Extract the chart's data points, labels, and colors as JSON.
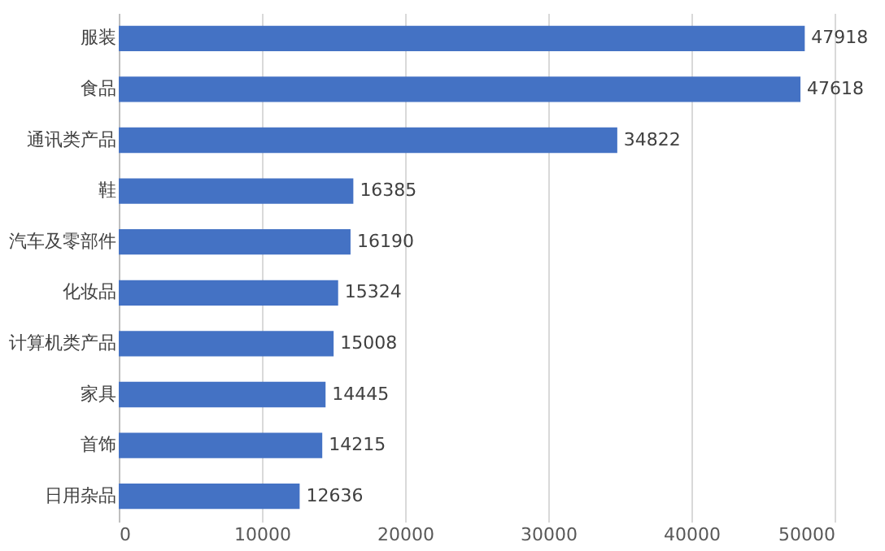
{
  "chart_data": {
    "type": "bar",
    "orientation": "horizontal",
    "categories": [
      "服装",
      "食品",
      "通讯类产品",
      "鞋",
      "汽车及零部件",
      "化妆品",
      "计算机类产品",
      "家具",
      "首饰",
      "日用杂品"
    ],
    "values": [
      47918,
      47618,
      34822,
      16385,
      16190,
      15324,
      15008,
      14445,
      14215,
      12636
    ],
    "color": "#4472c4",
    "xlim": [
      0,
      50000
    ],
    "xticks": [
      0,
      10000,
      20000,
      30000,
      40000,
      50000
    ],
    "grid": "x",
    "data_labels": true
  }
}
